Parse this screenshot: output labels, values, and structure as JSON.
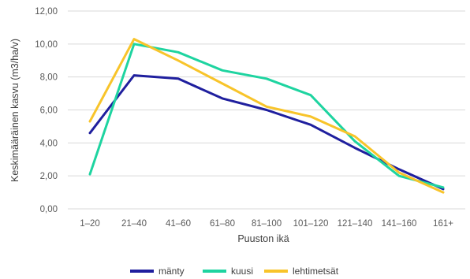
{
  "chart_data": {
    "type": "line",
    "title": "",
    "xlabel": "Puuston ikä",
    "ylabel": "Keskimääräinen kasvu (m3/ha/v)",
    "ylim": [
      0,
      12
    ],
    "y_ticks": [
      0,
      2,
      4,
      6,
      8,
      10,
      12
    ],
    "y_tick_labels": [
      "0,00",
      "2,00",
      "4,00",
      "6,00",
      "8,00",
      "10,00",
      "12,00"
    ],
    "grid": true,
    "legend_position": "bottom",
    "categories": [
      "1–20",
      "21–40",
      "41–60",
      "61–80",
      "81–100",
      "101–120",
      "121–140",
      "141–160",
      "161+"
    ],
    "series": [
      {
        "name": "mänty",
        "color": "#1f1f9e",
        "values": [
          4.6,
          8.1,
          7.9,
          6.7,
          6.0,
          5.1,
          3.7,
          2.4,
          1.2
        ]
      },
      {
        "name": "kuusi",
        "color": "#1ed4a0",
        "values": [
          2.1,
          10.0,
          9.5,
          8.4,
          7.9,
          6.9,
          4.1,
          2.0,
          1.3
        ]
      },
      {
        "name": "lehtimetsät",
        "color": "#f8c42a",
        "values": [
          5.3,
          10.3,
          9.0,
          7.6,
          6.2,
          5.6,
          4.4,
          2.2,
          1.0
        ]
      }
    ]
  }
}
